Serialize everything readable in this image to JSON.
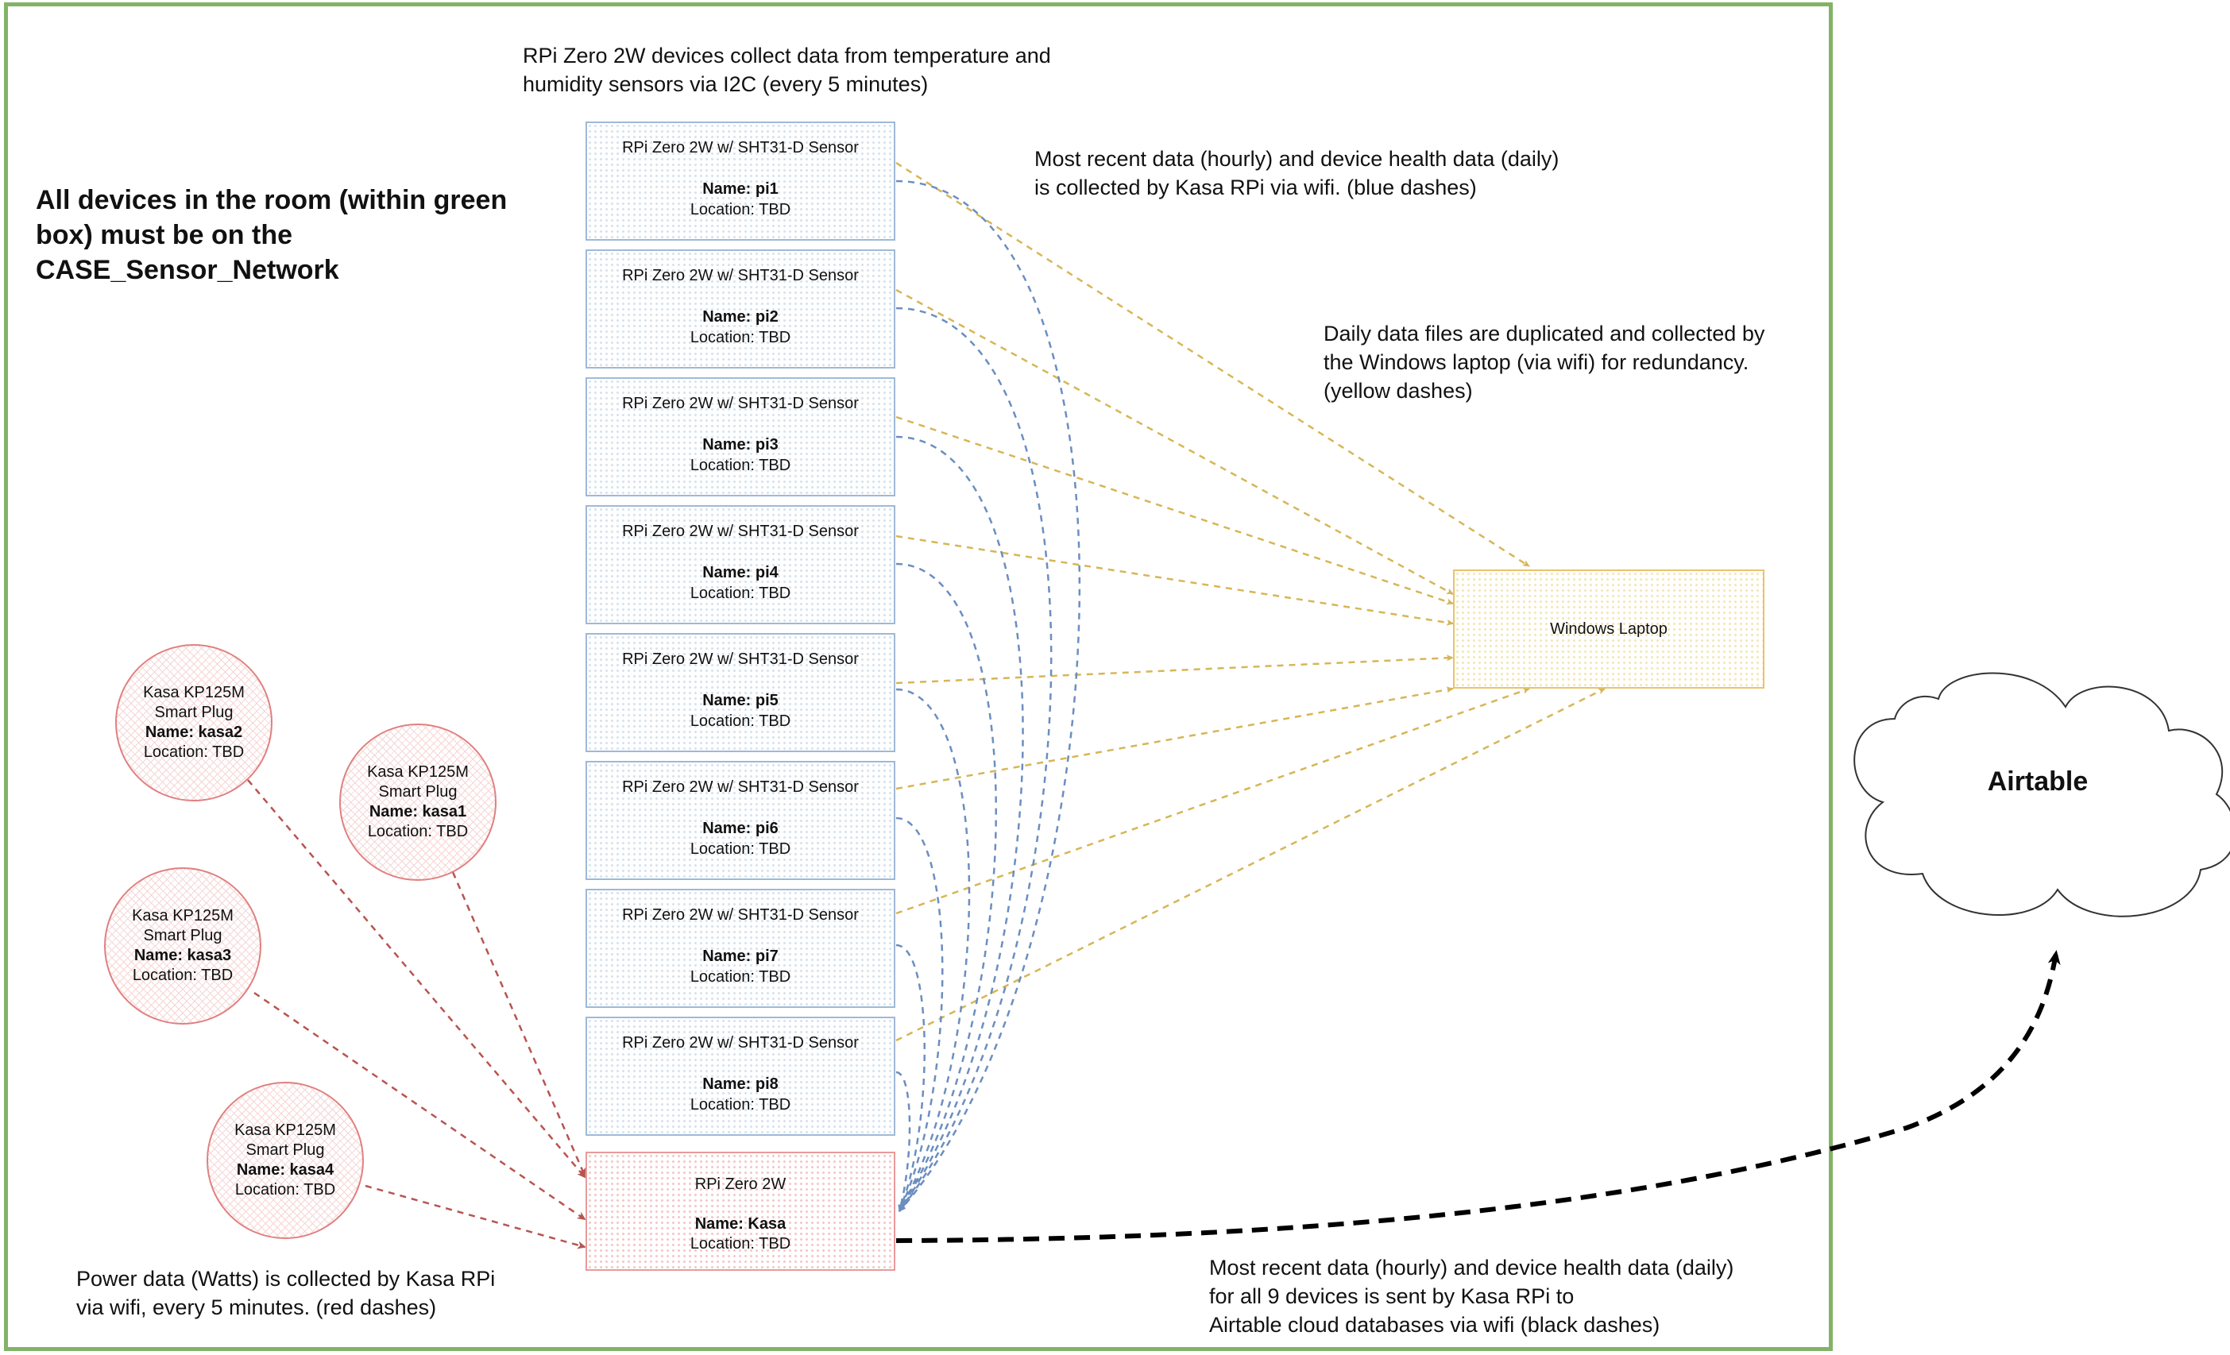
{
  "header_note": "RPi Zero 2W devices collect data from temperature and\nhumidity sensors via I2C (every 5 minutes)",
  "room_note": "All devices in the room  (within green\nbox) must be on the\nCASE_Sensor_Network",
  "blue_note": "Most recent data (hourly) and device health data (daily)\nis collected by Kasa RPi via wifi. (blue dashes)",
  "yellow_note": "Daily data files are duplicated and collected by\n the Windows laptop (via wifi) for redundancy.\n(yellow dashes)",
  "red_note": "Power data (Watts) is collected by Kasa RPi\nvia wifi, every 5 minutes. (red dashes)",
  "black_note": "Most recent data (hourly) and device health data (daily)\nfor all 9 devices is sent by Kasa RPi to\nAirtable cloud databases via wifi (black dashes)",
  "pi_devices": [
    {
      "title": "RPi Zero 2W w/ SHT31-D Sensor",
      "name": "Name: pi1",
      "location": "Location: TBD"
    },
    {
      "title": "RPi Zero 2W w/ SHT31-D Sensor",
      "name": "Name: pi2",
      "location": "Location: TBD"
    },
    {
      "title": "RPi Zero 2W w/ SHT31-D Sensor",
      "name": "Name: pi3",
      "location": "Location: TBD"
    },
    {
      "title": "RPi Zero 2W w/ SHT31-D Sensor",
      "name": "Name: pi4",
      "location": "Location: TBD"
    },
    {
      "title": "RPi Zero 2W w/ SHT31-D Sensor",
      "name": "Name: pi5",
      "location": "Location: TBD"
    },
    {
      "title": "RPi Zero 2W w/ SHT31-D Sensor",
      "name": "Name: pi6",
      "location": "Location: TBD"
    },
    {
      "title": "RPi Zero 2W w/ SHT31-D Sensor",
      "name": "Name: pi7",
      "location": "Location: TBD"
    },
    {
      "title": "RPi Zero 2W w/ SHT31-D Sensor",
      "name": "Name: pi8",
      "location": "Location: TBD"
    }
  ],
  "kasa_rpi": {
    "title": "RPi Zero 2W",
    "name": "Name: Kasa",
    "location": "Location: TBD"
  },
  "plugs": [
    {
      "title": "Kasa KP125M Smart Plug",
      "name": "Name: kasa2",
      "location": "Location: TBD"
    },
    {
      "title": "Kasa KP125M Smart Plug",
      "name": "Name: kasa1",
      "location": "Location: TBD"
    },
    {
      "title": "Kasa KP125M Smart Plug",
      "name": "Name: kasa3",
      "location": "Location: TBD"
    },
    {
      "title": "Kasa KP125M Smart Plug",
      "name": "Name: kasa4",
      "location": "Location: TBD"
    }
  ],
  "laptop_label": "Windows Laptop",
  "cloud_label": "Airtable",
  "colors": {
    "room_border": "#82b366",
    "blue_dash": "#6c8ebf",
    "yellow_dash": "#d6b656",
    "red_dash": "#b85450",
    "black_dash": "#000000"
  }
}
